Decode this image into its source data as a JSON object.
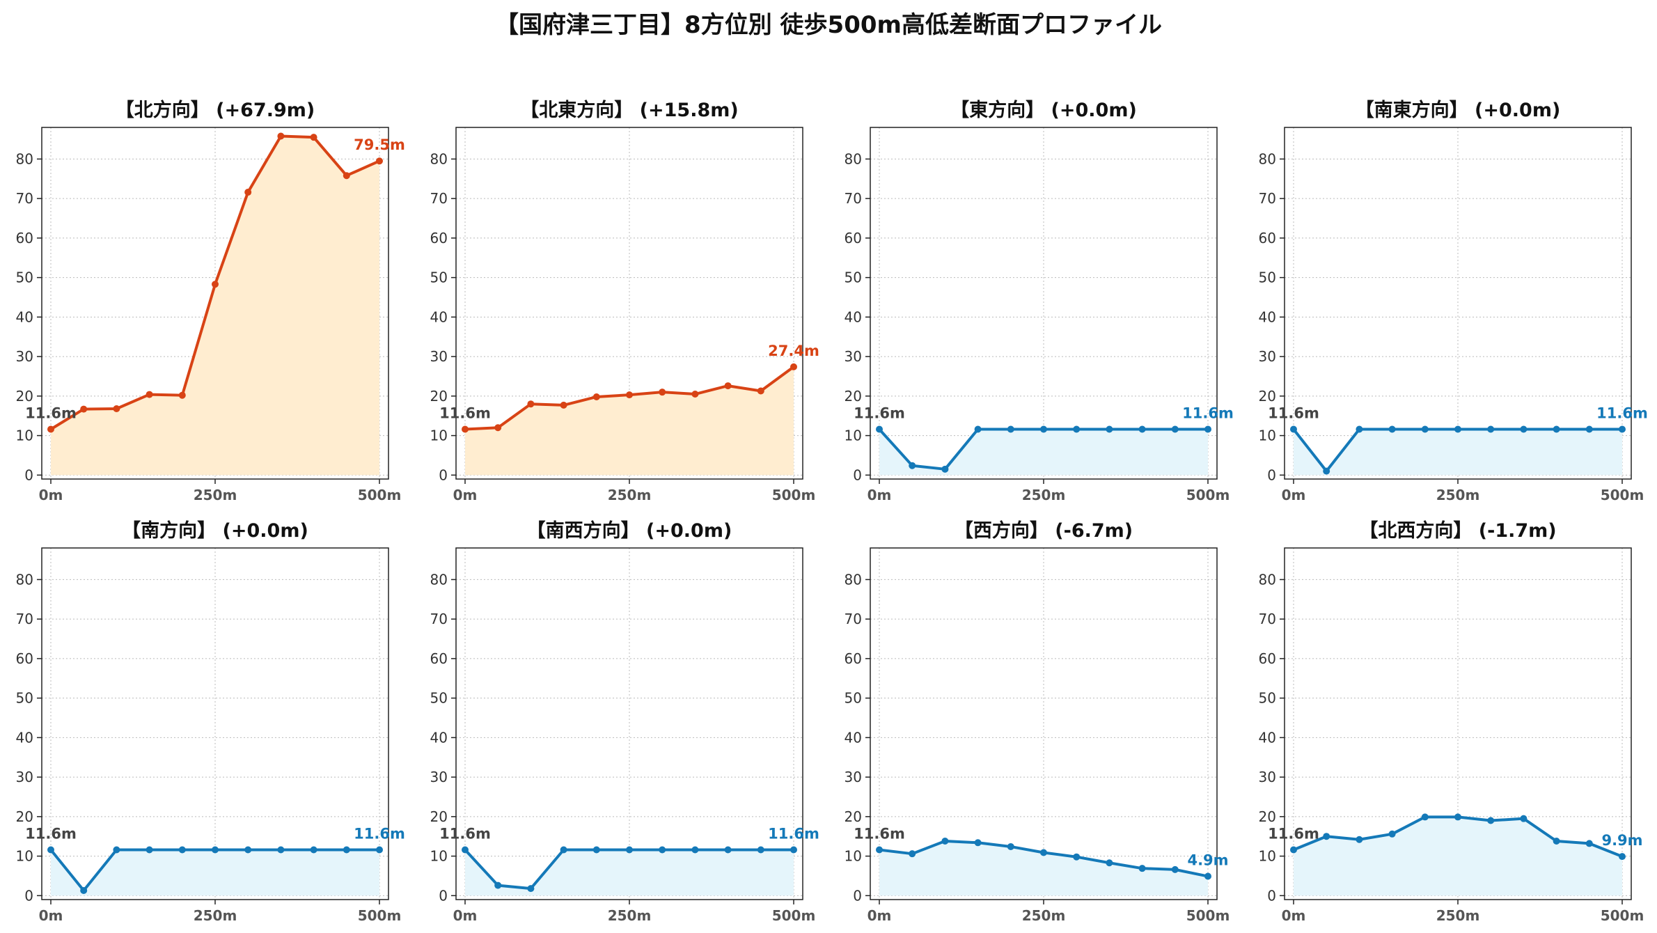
{
  "title": "【国府津三丁目】8方位別 徒歩500m高低差断面プロファイル",
  "colors": {
    "up_line": "#d84315",
    "up_fill": "#ffedd0",
    "down_line": "#1479b8",
    "down_fill": "#e5f5fb",
    "start_label": "#444444",
    "grid": "#bbbbbb"
  },
  "chart_data": [
    {
      "type": "area",
      "title": "【北方向】 (+67.9m)",
      "trend": "up",
      "x": [
        0,
        50,
        100,
        150,
        200,
        250,
        300,
        350,
        400,
        450,
        500
      ],
      "x_ticks": [
        0,
        250,
        500
      ],
      "x_tick_labels": [
        "0m",
        "250m",
        "500m"
      ],
      "y": [
        11.6,
        16.7,
        16.8,
        20.4,
        20.2,
        48.3,
        71.6,
        85.8,
        85.5,
        75.8,
        79.5
      ],
      "y_ticks": [
        0,
        10,
        20,
        30,
        40,
        50,
        60,
        70,
        80
      ],
      "ylim": [
        -1,
        88
      ],
      "grid": true,
      "start_label": "11.6m",
      "end_label": "79.5m"
    },
    {
      "type": "area",
      "title": "【北東方向】 (+15.8m)",
      "trend": "up",
      "x": [
        0,
        50,
        100,
        150,
        200,
        250,
        300,
        350,
        400,
        450,
        500
      ],
      "x_ticks": [
        0,
        250,
        500
      ],
      "x_tick_labels": [
        "0m",
        "250m",
        "500m"
      ],
      "y": [
        11.6,
        12.0,
        18.0,
        17.7,
        19.8,
        20.3,
        21.0,
        20.5,
        22.6,
        21.3,
        27.4
      ],
      "y_ticks": [
        0,
        10,
        20,
        30,
        40,
        50,
        60,
        70,
        80
      ],
      "ylim": [
        -1,
        88
      ],
      "grid": true,
      "start_label": "11.6m",
      "end_label": "27.4m"
    },
    {
      "type": "area",
      "title": "【東方向】 (+0.0m)",
      "trend": "flat",
      "x": [
        0,
        50,
        100,
        150,
        200,
        250,
        300,
        350,
        400,
        450,
        500
      ],
      "x_ticks": [
        0,
        250,
        500
      ],
      "x_tick_labels": [
        "0m",
        "250m",
        "500m"
      ],
      "y": [
        11.6,
        2.4,
        1.5,
        11.6,
        11.6,
        11.6,
        11.6,
        11.6,
        11.6,
        11.6,
        11.6
      ],
      "y_ticks": [
        0,
        10,
        20,
        30,
        40,
        50,
        60,
        70,
        80
      ],
      "ylim": [
        -1,
        88
      ],
      "grid": true,
      "start_label": "11.6m",
      "end_label": "11.6m"
    },
    {
      "type": "area",
      "title": "【南東方向】 (+0.0m)",
      "trend": "flat",
      "x": [
        0,
        50,
        100,
        150,
        200,
        250,
        300,
        350,
        400,
        450,
        500
      ],
      "x_ticks": [
        0,
        250,
        500
      ],
      "x_tick_labels": [
        "0m",
        "250m",
        "500m"
      ],
      "y": [
        11.6,
        1.0,
        11.6,
        11.6,
        11.6,
        11.6,
        11.6,
        11.6,
        11.6,
        11.6,
        11.6
      ],
      "y_ticks": [
        0,
        10,
        20,
        30,
        40,
        50,
        60,
        70,
        80
      ],
      "ylim": [
        -1,
        88
      ],
      "grid": true,
      "start_label": "11.6m",
      "end_label": "11.6m"
    },
    {
      "type": "area",
      "title": "【南方向】 (+0.0m)",
      "trend": "flat",
      "x": [
        0,
        50,
        100,
        150,
        200,
        250,
        300,
        350,
        400,
        450,
        500
      ],
      "x_ticks": [
        0,
        250,
        500
      ],
      "x_tick_labels": [
        "0m",
        "250m",
        "500m"
      ],
      "y": [
        11.6,
        1.3,
        11.6,
        11.6,
        11.6,
        11.6,
        11.6,
        11.6,
        11.6,
        11.6,
        11.6
      ],
      "y_ticks": [
        0,
        10,
        20,
        30,
        40,
        50,
        60,
        70,
        80
      ],
      "ylim": [
        -1,
        88
      ],
      "grid": true,
      "start_label": "11.6m",
      "end_label": "11.6m"
    },
    {
      "type": "area",
      "title": "【南西方向】 (+0.0m)",
      "trend": "flat",
      "x": [
        0,
        50,
        100,
        150,
        200,
        250,
        300,
        350,
        400,
        450,
        500
      ],
      "x_ticks": [
        0,
        250,
        500
      ],
      "x_tick_labels": [
        "0m",
        "250m",
        "500m"
      ],
      "y": [
        11.6,
        2.6,
        1.8,
        11.6,
        11.6,
        11.6,
        11.6,
        11.6,
        11.6,
        11.6,
        11.6
      ],
      "y_ticks": [
        0,
        10,
        20,
        30,
        40,
        50,
        60,
        70,
        80
      ],
      "ylim": [
        -1,
        88
      ],
      "grid": true,
      "start_label": "11.6m",
      "end_label": "11.6m"
    },
    {
      "type": "area",
      "title": "【西方向】 (-6.7m)",
      "trend": "down",
      "x": [
        0,
        50,
        100,
        150,
        200,
        250,
        300,
        350,
        400,
        450,
        500
      ],
      "x_ticks": [
        0,
        250,
        500
      ],
      "x_tick_labels": [
        "0m",
        "250m",
        "500m"
      ],
      "y": [
        11.6,
        10.6,
        13.8,
        13.4,
        12.4,
        10.9,
        9.8,
        8.3,
        6.9,
        6.6,
        4.9
      ],
      "y_ticks": [
        0,
        10,
        20,
        30,
        40,
        50,
        60,
        70,
        80
      ],
      "ylim": [
        -1,
        88
      ],
      "grid": true,
      "start_label": "11.6m",
      "end_label": "4.9m"
    },
    {
      "type": "area",
      "title": "【北西方向】 (-1.7m)",
      "trend": "down",
      "x": [
        0,
        50,
        100,
        150,
        200,
        250,
        300,
        350,
        400,
        450,
        500
      ],
      "x_ticks": [
        0,
        250,
        500
      ],
      "x_tick_labels": [
        "0m",
        "250m",
        "500m"
      ],
      "y": [
        11.6,
        15.0,
        14.2,
        15.6,
        19.9,
        19.9,
        19.0,
        19.5,
        13.8,
        13.2,
        9.9
      ],
      "y_ticks": [
        0,
        10,
        20,
        30,
        40,
        50,
        60,
        70,
        80
      ],
      "ylim": [
        -1,
        88
      ],
      "grid": true,
      "start_label": "11.6m",
      "end_label": "9.9m"
    }
  ]
}
